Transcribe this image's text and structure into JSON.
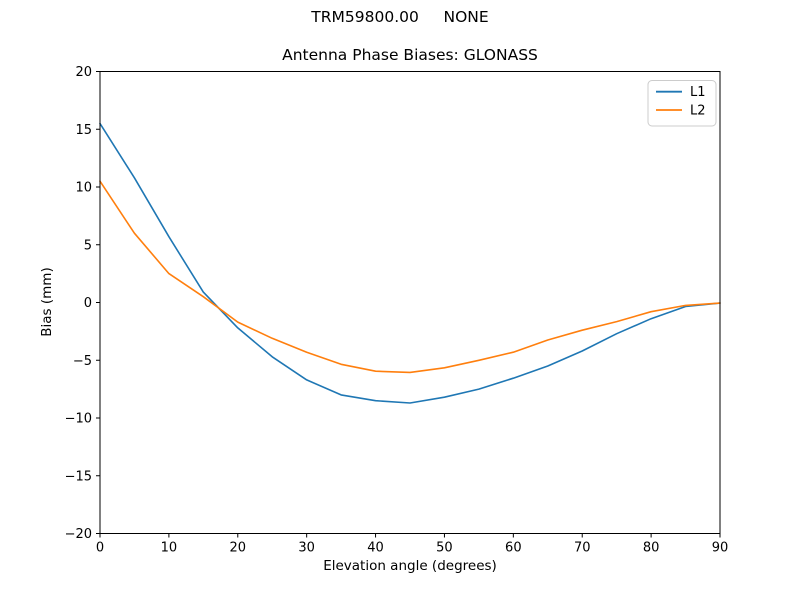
{
  "figure": {
    "suptitle": "TRM59800.00     NONE"
  },
  "chart_data": {
    "type": "line",
    "title": "Antenna Phase Biases: GLONASS",
    "xlabel": "Elevation angle (degrees)",
    "ylabel": "Bias (mm)",
    "xlim": [
      0,
      90
    ],
    "ylim": [
      -20,
      20
    ],
    "grid": false,
    "background_color": "#ffffff",
    "axis_color": "#000000",
    "legend": {
      "position": "upper right",
      "border_color": "#cccccc",
      "entries": [
        "L1",
        "L2"
      ]
    },
    "xticks": [
      0,
      10,
      20,
      30,
      40,
      50,
      60,
      70,
      80,
      90
    ],
    "xtick_labels": [
      "0",
      "10",
      "20",
      "30",
      "40",
      "50",
      "60",
      "70",
      "80",
      "90"
    ],
    "yticks": [
      -20,
      -15,
      -10,
      -5,
      0,
      5,
      10,
      15,
      20
    ],
    "ytick_labels": [
      "−20",
      "−15",
      "−10",
      "−5",
      "0",
      "5",
      "10",
      "15",
      "20"
    ],
    "x": [
      0,
      5,
      10,
      15,
      20,
      25,
      30,
      35,
      40,
      45,
      50,
      55,
      60,
      65,
      70,
      75,
      80,
      85,
      90
    ],
    "series": [
      {
        "name": "L1",
        "color": "#1f77b4",
        "values": [
          15.5,
          10.8,
          5.7,
          0.9,
          -2.2,
          -4.7,
          -6.7,
          -8.0,
          -8.5,
          -8.7,
          -8.2,
          -7.5,
          -6.55,
          -5.5,
          -4.2,
          -2.7,
          -1.4,
          -0.35,
          -0.05
        ]
      },
      {
        "name": "L2",
        "color": "#ff7f0e",
        "values": [
          10.5,
          6.0,
          2.5,
          0.5,
          -1.7,
          -3.1,
          -4.3,
          -5.35,
          -5.95,
          -6.05,
          -5.65,
          -5.0,
          -4.3,
          -3.25,
          -2.4,
          -1.65,
          -0.8,
          -0.25,
          -0.05
        ]
      }
    ]
  }
}
